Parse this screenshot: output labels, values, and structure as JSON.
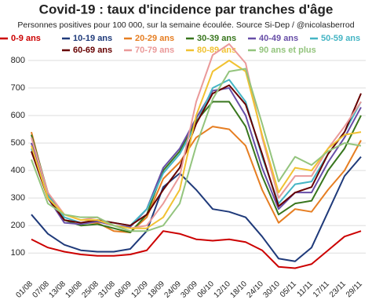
{
  "chart_data": {
    "type": "line",
    "title": "Covid-19 : taux d'incidence par tranches d'âge",
    "subtitle": "Personnes positives pour 100 000, sur la semaine écoulée. Source Si-Dep / @nicolasberrod",
    "categories": [
      "01/08",
      "07/08",
      "13/08",
      "19/08",
      "25/08",
      "31/08",
      "06/09",
      "12/09",
      "18/09",
      "24/09",
      "30/09",
      "06/10",
      "12/10",
      "18/10",
      "24/10",
      "30/10",
      "05/11",
      "11/11",
      "17/11",
      "23/11",
      "29/11"
    ],
    "series": [
      {
        "name": "0-9 ans",
        "color": "#cc0000",
        "values": [
          150,
          120,
          105,
          95,
          90,
          90,
          95,
          110,
          180,
          170,
          150,
          145,
          150,
          140,
          110,
          50,
          45,
          60,
          110,
          160,
          180
        ]
      },
      {
        "name": "10-19 ans",
        "color": "#1f3a7a",
        "values": [
          240,
          170,
          130,
          110,
          105,
          105,
          115,
          180,
          340,
          390,
          330,
          260,
          250,
          230,
          160,
          80,
          70,
          120,
          250,
          380,
          450
        ]
      },
      {
        "name": "20-29 ans",
        "color": "#e67e22",
        "values": [
          540,
          310,
          220,
          210,
          210,
          180,
          175,
          230,
          370,
          430,
          520,
          560,
          550,
          490,
          330,
          210,
          260,
          250,
          330,
          400,
          510
        ]
      },
      {
        "name": "30-39 ans",
        "color": "#38761d",
        "values": [
          530,
          320,
          220,
          200,
          205,
          190,
          175,
          240,
          400,
          470,
          580,
          650,
          650,
          560,
          380,
          240,
          280,
          290,
          400,
          480,
          600
        ]
      },
      {
        "name": "40-49 ans",
        "color": "#674ea7",
        "values": [
          500,
          300,
          210,
          205,
          215,
          200,
          195,
          260,
          410,
          480,
          590,
          690,
          700,
          600,
          410,
          260,
          320,
          320,
          430,
          520,
          630
        ]
      },
      {
        "name": "50-59 ans",
        "color": "#45b5c4",
        "values": [
          480,
          310,
          230,
          210,
          220,
          210,
          200,
          260,
          390,
          460,
          570,
          700,
          730,
          650,
          450,
          280,
          350,
          360,
          460,
          540,
          650
        ]
      },
      {
        "name": "60-69 ans",
        "color": "#660000",
        "values": [
          470,
          300,
          220,
          210,
          220,
          210,
          200,
          240,
          330,
          410,
          570,
          680,
          710,
          640,
          460,
          270,
          320,
          340,
          460,
          540,
          680
        ]
      },
      {
        "name": "70-79 ans",
        "color": "#ea9999",
        "values": [
          520,
          320,
          240,
          220,
          230,
          200,
          190,
          200,
          280,
          380,
          650,
          820,
          860,
          790,
          520,
          300,
          380,
          380,
          480,
          560,
          650
        ]
      },
      {
        "name": "80-89 ans",
        "color": "#f1c232",
        "values": [
          490,
          300,
          240,
          220,
          220,
          200,
          190,
          190,
          230,
          330,
          600,
          760,
          800,
          760,
          530,
          320,
          410,
          400,
          480,
          530,
          540
        ]
      },
      {
        "name": "90 ans et plus",
        "color": "#93c47d",
        "values": [
          440,
          280,
          240,
          230,
          230,
          200,
          180,
          180,
          200,
          280,
          490,
          660,
          760,
          770,
          570,
          360,
          450,
          420,
          470,
          500,
          490
        ]
      }
    ],
    "ylim": [
      15,
      820
    ],
    "yticks": [
      100,
      200,
      300,
      400,
      500,
      600,
      700,
      800
    ],
    "grid": true
  }
}
